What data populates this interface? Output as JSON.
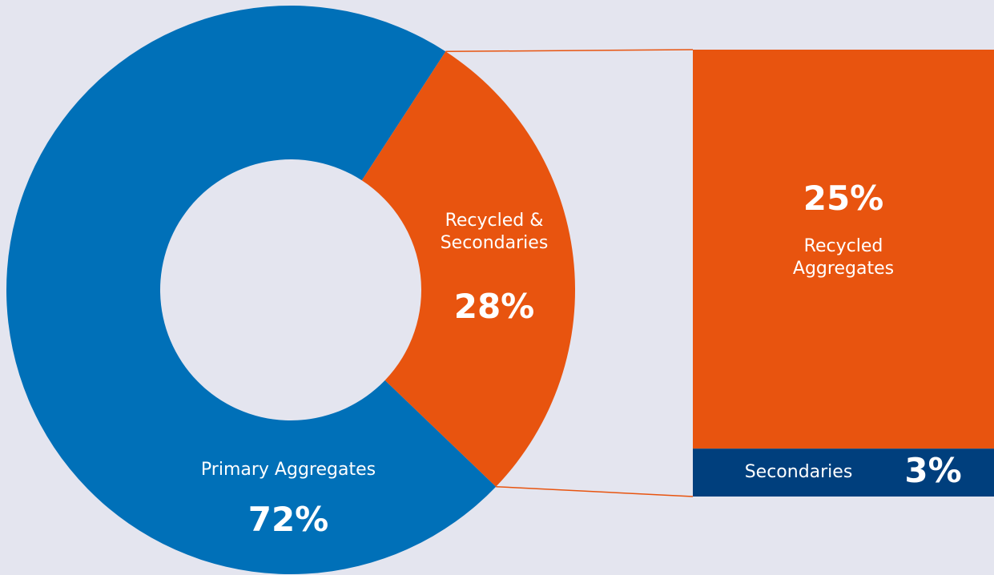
{
  "chart_data": [
    {
      "type": "pie",
      "donut": true,
      "categories": [
        "Primary Aggregates",
        "Recycled & Secondaries"
      ],
      "values": [
        72,
        28
      ],
      "value_labels": [
        "72%",
        "28%"
      ],
      "colors": [
        "#0070b8",
        "#e8540f"
      ]
    },
    {
      "type": "bar",
      "stacked": true,
      "series": [
        {
          "name": "Recycled Aggregates",
          "color": "#e8540f",
          "values": [
            25
          ],
          "value_labels": [
            "25%"
          ]
        },
        {
          "name": "Secondaries",
          "color": "#003f7d",
          "values": [
            3
          ],
          "value_labels": [
            "3%"
          ]
        }
      ]
    }
  ]
}
